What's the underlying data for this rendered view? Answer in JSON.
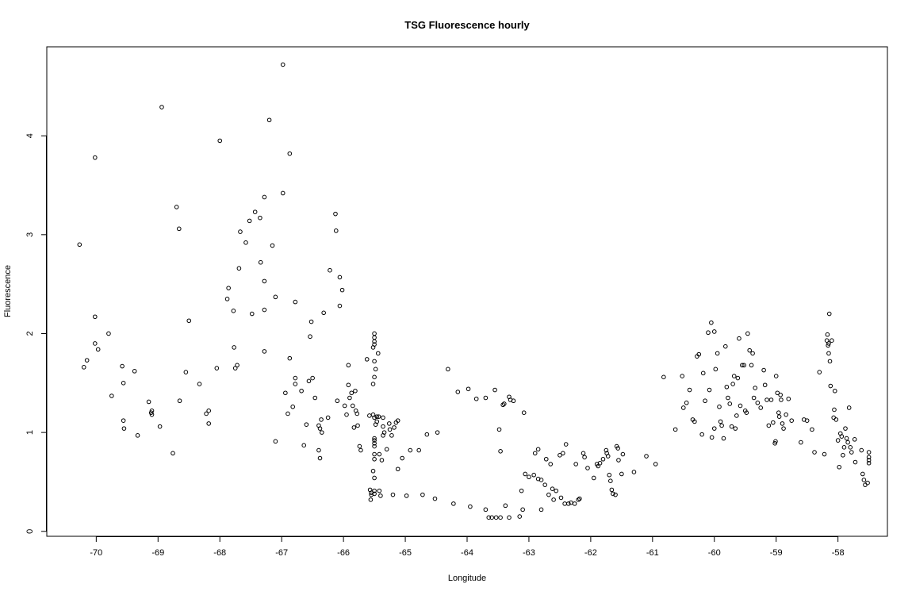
{
  "chart_data": {
    "type": "scatter",
    "title": "TSG Fluorescence hourly",
    "xlabel": "Longitude",
    "ylabel": "Fluorescence",
    "xlim": [
      -70.8,
      -57.2
    ],
    "ylim": [
      -0.05,
      4.9
    ],
    "x_ticks": [
      -70,
      -69,
      -68,
      -67,
      -66,
      -65,
      -64,
      -63,
      -62,
      -61,
      -60,
      -59,
      -58
    ],
    "y_ticks": [
      0,
      1,
      2,
      3,
      4
    ],
    "grid": false,
    "legend": "none",
    "marker_color": "#000000",
    "points": [
      [
        -70.27,
        2.9
      ],
      [
        -70.2,
        1.66
      ],
      [
        -70.15,
        1.73
      ],
      [
        -70.02,
        3.78
      ],
      [
        -70.02,
        2.17
      ],
      [
        -70.02,
        1.9
      ],
      [
        -69.97,
        1.84
      ],
      [
        -69.8,
        2.0
      ],
      [
        -69.75,
        1.37
      ],
      [
        -69.58,
        1.67
      ],
      [
        -69.56,
        1.5
      ],
      [
        -69.56,
        1.12
      ],
      [
        -69.55,
        1.04
      ],
      [
        -69.38,
        1.62
      ],
      [
        -69.33,
        0.97
      ],
      [
        -69.15,
        1.31
      ],
      [
        -69.11,
        1.2
      ],
      [
        -69.1,
        1.22
      ],
      [
        -69.1,
        1.18
      ],
      [
        -68.97,
        1.06
      ],
      [
        -68.94,
        4.29
      ],
      [
        -68.76,
        0.79
      ],
      [
        -68.7,
        3.28
      ],
      [
        -68.66,
        3.06
      ],
      [
        -68.65,
        1.32
      ],
      [
        -68.55,
        1.61
      ],
      [
        -68.5,
        2.13
      ],
      [
        -68.33,
        1.49
      ],
      [
        -68.22,
        1.19
      ],
      [
        -68.18,
        1.22
      ],
      [
        -68.18,
        1.09
      ],
      [
        -68.05,
        1.65
      ],
      [
        -68.0,
        3.95
      ],
      [
        -67.88,
        2.35
      ],
      [
        -67.86,
        2.46
      ],
      [
        -67.78,
        2.23
      ],
      [
        -67.77,
        1.86
      ],
      [
        -67.75,
        1.65
      ],
      [
        -67.72,
        1.68
      ],
      [
        -67.69,
        2.66
      ],
      [
        -67.67,
        3.03
      ],
      [
        -67.58,
        2.92
      ],
      [
        -67.52,
        3.14
      ],
      [
        -67.48,
        2.2
      ],
      [
        -67.43,
        3.23
      ],
      [
        -67.35,
        3.17
      ],
      [
        -67.34,
        2.72
      ],
      [
        -67.28,
        3.38
      ],
      [
        -67.28,
        2.53
      ],
      [
        -67.28,
        2.24
      ],
      [
        -67.28,
        1.82
      ],
      [
        -67.2,
        4.16
      ],
      [
        -67.15,
        2.89
      ],
      [
        -67.1,
        2.37
      ],
      [
        -67.1,
        0.91
      ],
      [
        -66.98,
        4.72
      ],
      [
        -66.98,
        3.42
      ],
      [
        -66.94,
        1.4
      ],
      [
        -66.9,
        1.19
      ],
      [
        -66.87,
        3.82
      ],
      [
        -66.87,
        1.75
      ],
      [
        -66.82,
        1.26
      ],
      [
        -66.78,
        2.32
      ],
      [
        -66.78,
        1.55
      ],
      [
        -66.78,
        1.49
      ],
      [
        -66.68,
        1.42
      ],
      [
        -66.64,
        0.87
      ],
      [
        -66.6,
        1.08
      ],
      [
        -66.56,
        1.52
      ],
      [
        -66.54,
        1.97
      ],
      [
        -66.52,
        2.12
      ],
      [
        -66.5,
        1.55
      ],
      [
        -66.46,
        1.35
      ],
      [
        -66.4,
        1.07
      ],
      [
        -66.4,
        0.82
      ],
      [
        -66.38,
        1.04
      ],
      [
        -66.38,
        0.74
      ],
      [
        -66.36,
        1.13
      ],
      [
        -66.35,
        1.0
      ],
      [
        -66.32,
        2.21
      ],
      [
        -66.25,
        1.15
      ],
      [
        -66.22,
        2.64
      ],
      [
        -66.13,
        3.21
      ],
      [
        -66.12,
        3.04
      ],
      [
        -66.1,
        1.32
      ],
      [
        -66.06,
        2.57
      ],
      [
        -66.06,
        2.28
      ],
      [
        -66.02,
        2.44
      ],
      [
        -65.98,
        1.27
      ],
      [
        -65.95,
        1.18
      ],
      [
        -65.92,
        1.68
      ],
      [
        -65.92,
        1.48
      ],
      [
        -65.9,
        1.35
      ],
      [
        -65.87,
        1.4
      ],
      [
        -65.85,
        1.27
      ],
      [
        -65.83,
        1.05
      ],
      [
        -65.81,
        1.42
      ],
      [
        -65.8,
        1.22
      ],
      [
        -65.78,
        1.19
      ],
      [
        -65.77,
        1.07
      ],
      [
        -65.74,
        0.86
      ],
      [
        -65.72,
        0.82
      ],
      [
        -65.62,
        1.74
      ],
      [
        -65.58,
        1.17
      ],
      [
        -65.57,
        0.42
      ],
      [
        -65.56,
        0.32
      ],
      [
        -65.55,
        0.39
      ],
      [
        -65.55,
        0.37
      ],
      [
        -65.52,
        1.86
      ],
      [
        -65.52,
        1.49
      ],
      [
        -65.52,
        1.18
      ],
      [
        -65.52,
        0.61
      ],
      [
        -65.5,
        2.0
      ],
      [
        -65.5,
        1.96
      ],
      [
        -65.5,
        1.92
      ],
      [
        -65.5,
        1.89
      ],
      [
        -65.5,
        1.72
      ],
      [
        -65.5,
        1.56
      ],
      [
        -65.5,
        1.15
      ],
      [
        -65.5,
        0.94
      ],
      [
        -65.5,
        0.92
      ],
      [
        -65.5,
        0.89
      ],
      [
        -65.5,
        0.86
      ],
      [
        -65.5,
        0.78
      ],
      [
        -65.5,
        0.73
      ],
      [
        -65.5,
        0.54
      ],
      [
        -65.5,
        0.41
      ],
      [
        -65.5,
        0.38
      ],
      [
        -65.48,
        1.64
      ],
      [
        -65.48,
        1.08
      ],
      [
        -65.46,
        1.16
      ],
      [
        -65.46,
        1.11
      ],
      [
        -65.44,
        1.8
      ],
      [
        -65.43,
        1.16
      ],
      [
        -65.42,
        0.78
      ],
      [
        -65.42,
        0.41
      ],
      [
        -65.4,
        0.36
      ],
      [
        -65.38,
        0.72
      ],
      [
        -65.36,
        1.15
      ],
      [
        -65.36,
        1.06
      ],
      [
        -65.36,
        0.97
      ],
      [
        -65.34,
        1.0
      ],
      [
        -65.3,
        0.83
      ],
      [
        -65.26,
        1.09
      ],
      [
        -65.25,
        1.03
      ],
      [
        -65.22,
        0.97
      ],
      [
        -65.2,
        0.37
      ],
      [
        -65.18,
        1.05
      ],
      [
        -65.15,
        1.1
      ],
      [
        -65.12,
        1.12
      ],
      [
        -65.12,
        0.63
      ],
      [
        -65.05,
        0.74
      ],
      [
        -64.98,
        0.36
      ],
      [
        -64.92,
        0.82
      ],
      [
        -64.78,
        0.82
      ],
      [
        -64.72,
        0.37
      ],
      [
        -64.65,
        0.98
      ],
      [
        -64.52,
        0.33
      ],
      [
        -64.48,
        1.0
      ],
      [
        -64.31,
        1.64
      ],
      [
        -64.22,
        0.28
      ],
      [
        -64.15,
        1.41
      ],
      [
        -63.98,
        1.44
      ],
      [
        -63.95,
        0.25
      ],
      [
        -63.85,
        1.34
      ],
      [
        -63.7,
        1.35
      ],
      [
        -63.7,
        0.22
      ],
      [
        -63.65,
        0.14
      ],
      [
        -63.6,
        0.14
      ],
      [
        -63.55,
        1.43
      ],
      [
        -63.53,
        0.14
      ],
      [
        -63.48,
        1.03
      ],
      [
        -63.46,
        0.14
      ],
      [
        -63.46,
        0.81
      ],
      [
        -63.42,
        1.28
      ],
      [
        -63.4,
        1.29
      ],
      [
        -63.38,
        0.26
      ],
      [
        -63.32,
        0.14
      ],
      [
        -63.32,
        1.36
      ],
      [
        -63.3,
        1.33
      ],
      [
        -63.25,
        1.32
      ],
      [
        -63.15,
        0.15
      ],
      [
        -63.12,
        0.41
      ],
      [
        -63.1,
        0.22
      ],
      [
        -63.08,
        1.2
      ],
      [
        -63.06,
        0.58
      ],
      [
        -63.0,
        0.55
      ],
      [
        -62.92,
        0.57
      ],
      [
        -62.9,
        0.79
      ],
      [
        -62.85,
        0.83
      ],
      [
        -62.85,
        0.53
      ],
      [
        -62.8,
        0.22
      ],
      [
        -62.8,
        0.52
      ],
      [
        -62.74,
        0.47
      ],
      [
        -62.72,
        0.73
      ],
      [
        -62.68,
        0.37
      ],
      [
        -62.65,
        0.68
      ],
      [
        -62.62,
        0.43
      ],
      [
        -62.6,
        0.32
      ],
      [
        -62.56,
        0.41
      ],
      [
        -62.5,
        0.77
      ],
      [
        -62.48,
        0.34
      ],
      [
        -62.45,
        0.79
      ],
      [
        -62.42,
        0.28
      ],
      [
        -62.4,
        0.88
      ],
      [
        -62.36,
        0.28
      ],
      [
        -62.32,
        0.29
      ],
      [
        -62.26,
        0.28
      ],
      [
        -62.24,
        0.68
      ],
      [
        -62.2,
        0.32
      ],
      [
        -62.18,
        0.33
      ],
      [
        -62.12,
        0.79
      ],
      [
        -62.1,
        0.75
      ],
      [
        -62.05,
        0.64
      ],
      [
        -61.95,
        0.54
      ],
      [
        -61.9,
        0.68
      ],
      [
        -61.88,
        0.66
      ],
      [
        -61.85,
        0.69
      ],
      [
        -61.8,
        0.73
      ],
      [
        -61.75,
        0.82
      ],
      [
        -61.74,
        0.79
      ],
      [
        -61.72,
        0.76
      ],
      [
        -61.7,
        0.57
      ],
      [
        -61.68,
        0.51
      ],
      [
        -61.66,
        0.42
      ],
      [
        -61.64,
        0.38
      ],
      [
        -61.6,
        0.37
      ],
      [
        -61.58,
        0.86
      ],
      [
        -61.56,
        0.84
      ],
      [
        -61.55,
        0.72
      ],
      [
        -61.5,
        0.58
      ],
      [
        -61.48,
        0.78
      ],
      [
        -61.3,
        0.6
      ],
      [
        -61.1,
        0.76
      ],
      [
        -60.95,
        0.68
      ],
      [
        -60.82,
        1.56
      ],
      [
        -60.63,
        1.03
      ],
      [
        -60.52,
        1.57
      ],
      [
        -60.5,
        1.25
      ],
      [
        -60.45,
        1.3
      ],
      [
        -60.4,
        1.43
      ],
      [
        -60.35,
        1.13
      ],
      [
        -60.32,
        1.11
      ],
      [
        -60.28,
        1.77
      ],
      [
        -60.25,
        1.79
      ],
      [
        -60.2,
        0.98
      ],
      [
        -60.18,
        1.6
      ],
      [
        -60.15,
        1.32
      ],
      [
        -60.1,
        2.01
      ],
      [
        -60.08,
        1.43
      ],
      [
        -60.05,
        2.11
      ],
      [
        -60.04,
        0.95
      ],
      [
        -60.0,
        2.02
      ],
      [
        -60.0,
        1.04
      ],
      [
        -59.98,
        1.64
      ],
      [
        -59.95,
        1.8
      ],
      [
        -59.92,
        1.26
      ],
      [
        -59.9,
        1.11
      ],
      [
        -59.88,
        1.07
      ],
      [
        -59.85,
        0.94
      ],
      [
        -59.82,
        1.87
      ],
      [
        -59.8,
        1.46
      ],
      [
        -59.78,
        1.35
      ],
      [
        -59.75,
        1.29
      ],
      [
        -59.72,
        1.06
      ],
      [
        -59.7,
        1.49
      ],
      [
        -59.68,
        1.57
      ],
      [
        -59.66,
        1.04
      ],
      [
        -59.64,
        1.17
      ],
      [
        -59.62,
        1.55
      ],
      [
        -59.6,
        1.95
      ],
      [
        -59.58,
        1.27
      ],
      [
        -59.55,
        1.68
      ],
      [
        -59.52,
        1.68
      ],
      [
        -59.5,
        1.22
      ],
      [
        -59.48,
        1.2
      ],
      [
        -59.46,
        2.0
      ],
      [
        -59.43,
        1.83
      ],
      [
        -59.4,
        1.68
      ],
      [
        -59.38,
        1.8
      ],
      [
        -59.36,
        1.35
      ],
      [
        -59.34,
        1.45
      ],
      [
        -59.3,
        1.3
      ],
      [
        -59.25,
        1.25
      ],
      [
        -59.2,
        1.63
      ],
      [
        -59.18,
        1.48
      ],
      [
        -59.15,
        1.33
      ],
      [
        -59.12,
        1.07
      ],
      [
        -59.08,
        1.33
      ],
      [
        -59.05,
        1.1
      ],
      [
        -59.02,
        0.89
      ],
      [
        -59.01,
        0.91
      ],
      [
        -59.0,
        1.57
      ],
      [
        -58.98,
        1.4
      ],
      [
        -58.96,
        1.2
      ],
      [
        -58.95,
        1.16
      ],
      [
        -58.93,
        1.38
      ],
      [
        -58.92,
        1.33
      ],
      [
        -58.9,
        1.09
      ],
      [
        -58.88,
        1.04
      ],
      [
        -58.84,
        1.18
      ],
      [
        -58.8,
        1.34
      ],
      [
        -58.75,
        1.12
      ],
      [
        -58.6,
        0.9
      ],
      [
        -58.55,
        1.13
      ],
      [
        -58.5,
        1.12
      ],
      [
        -58.42,
        1.03
      ],
      [
        -58.38,
        0.8
      ],
      [
        -58.3,
        1.61
      ],
      [
        -58.22,
        0.78
      ],
      [
        -58.18,
        1.93
      ],
      [
        -58.17,
        1.99
      ],
      [
        -58.16,
        1.88
      ],
      [
        -58.15,
        1.9
      ],
      [
        -58.15,
        1.8
      ],
      [
        -58.14,
        2.2
      ],
      [
        -58.13,
        1.72
      ],
      [
        -58.12,
        1.47
      ],
      [
        -58.1,
        1.93
      ],
      [
        -58.07,
        1.15
      ],
      [
        -58.06,
        1.23
      ],
      [
        -58.05,
        1.42
      ],
      [
        -58.03,
        1.13
      ],
      [
        -58.0,
        0.92
      ],
      [
        -57.98,
        0.65
      ],
      [
        -57.96,
        0.99
      ],
      [
        -57.94,
        0.96
      ],
      [
        -57.92,
        0.77
      ],
      [
        -57.9,
        0.85
      ],
      [
        -57.88,
        1.04
      ],
      [
        -57.86,
        0.94
      ],
      [
        -57.84,
        0.9
      ],
      [
        -57.82,
        1.25
      ],
      [
        -57.8,
        0.85
      ],
      [
        -57.78,
        0.8
      ],
      [
        -57.73,
        0.93
      ],
      [
        -57.72,
        0.7
      ],
      [
        -57.62,
        0.82
      ],
      [
        -57.6,
        0.58
      ],
      [
        -57.58,
        0.52
      ],
      [
        -57.56,
        0.47
      ],
      [
        -57.52,
        0.49
      ],
      [
        -57.5,
        0.8
      ],
      [
        -57.5,
        0.75
      ],
      [
        -57.5,
        0.72
      ],
      [
        -57.5,
        0.69
      ]
    ]
  }
}
